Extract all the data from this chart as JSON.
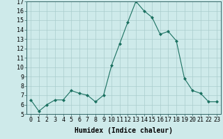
{
  "x": [
    0,
    1,
    2,
    3,
    4,
    5,
    6,
    7,
    8,
    9,
    10,
    11,
    12,
    13,
    14,
    15,
    16,
    17,
    18,
    19,
    20,
    21,
    22,
    23
  ],
  "y": [
    6.5,
    5.3,
    6.0,
    6.5,
    6.5,
    7.5,
    7.2,
    7.0,
    6.3,
    7.0,
    10.2,
    12.5,
    14.8,
    17.0,
    16.0,
    15.3,
    13.5,
    13.8,
    12.8,
    8.8,
    7.5,
    7.2,
    6.3,
    6.3
  ],
  "line_color": "#1a7060",
  "marker": "D",
  "marker_size": 2,
  "bg_color": "#ceeaea",
  "grid_color": "#aacccc",
  "xlabel": "Humidex (Indice chaleur)",
  "xlim": [
    -0.5,
    23.5
  ],
  "ylim": [
    5,
    17
  ],
  "yticks": [
    5,
    6,
    7,
    8,
    9,
    10,
    11,
    12,
    13,
    14,
    15,
    16,
    17
  ],
  "xticks": [
    0,
    1,
    2,
    3,
    4,
    5,
    6,
    7,
    8,
    9,
    10,
    11,
    12,
    13,
    14,
    15,
    16,
    17,
    18,
    19,
    20,
    21,
    22,
    23
  ],
  "xlabel_fontsize": 7,
  "tick_fontsize": 6
}
